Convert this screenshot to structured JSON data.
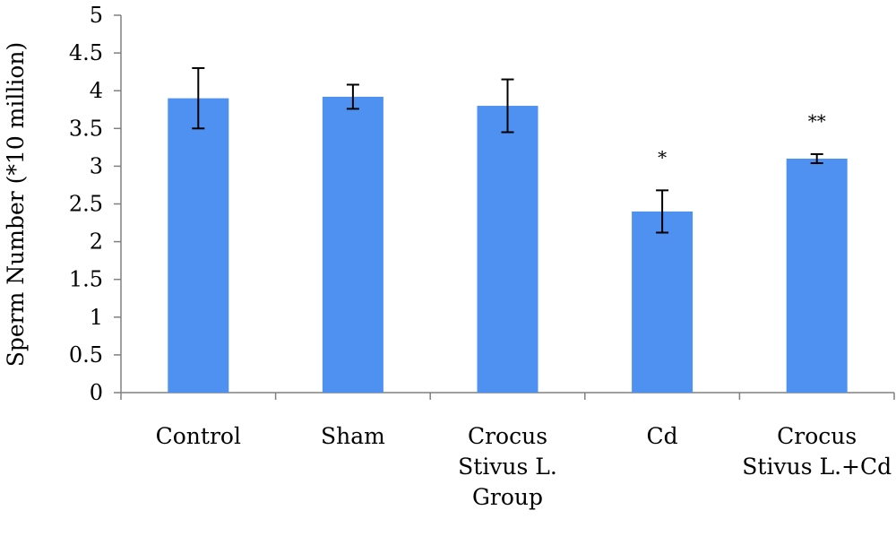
{
  "chart_data": {
    "type": "bar",
    "title": "",
    "xlabel": "",
    "ylabel": "Sperm Number (*10 million)",
    "ylim": [
      0,
      5
    ],
    "ytick_step": 0.5,
    "yticks": [
      "0",
      "0.5",
      "1",
      "1.5",
      "2",
      "2.5",
      "3",
      "3.5",
      "4",
      "4.5",
      "5"
    ],
    "grid": false,
    "legend": "none",
    "bar_color": "#4F91F0",
    "categories": [
      [
        "Control"
      ],
      [
        "Sham"
      ],
      [
        "Crocus",
        "Stivus L.",
        "Group"
      ],
      [
        "Cd"
      ],
      [
        "Crocus",
        "Stivus L.+Cd"
      ]
    ],
    "values": [
      3.9,
      3.92,
      3.8,
      2.4,
      3.1
    ],
    "errors": [
      0.4,
      0.16,
      0.35,
      0.28,
      0.06
    ],
    "annotations": [
      "",
      "",
      "",
      "*",
      "**"
    ]
  }
}
